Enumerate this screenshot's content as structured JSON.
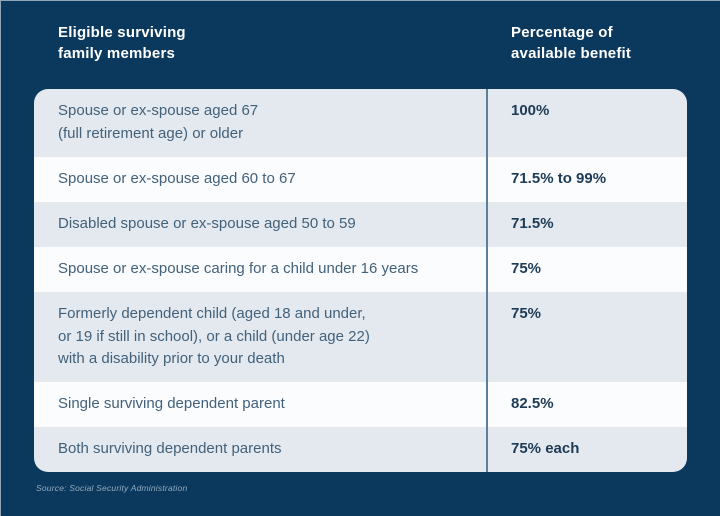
{
  "header": {
    "col1": "Eligible surviving\nfamily members",
    "col2": "Percentage of\navailable benefit"
  },
  "table": {
    "rows": [
      {
        "label": "Spouse or ex-spouse aged 67\n(full retirement age) or older",
        "value": "100%"
      },
      {
        "label": "Spouse or ex-spouse aged 60 to 67",
        "value": "71.5% to 99%"
      },
      {
        "label": "Disabled spouse or ex-spouse aged 50 to 59",
        "value": "71.5%"
      },
      {
        "label": "Spouse or ex-spouse caring for a child under 16 years",
        "value": "75%"
      },
      {
        "label": "Formerly dependent child (aged 18 and under,\nor 19 if still in school), or a child (under age 22)\nwith a disability prior to your death",
        "value": "75%"
      },
      {
        "label": "Single surviving dependent parent",
        "value": "82.5%"
      },
      {
        "label": "Both surviving dependent parents",
        "value": "75% each"
      }
    ]
  },
  "footer": {
    "source": "Source: Social Security Administration"
  },
  "colors": {
    "background_navy": "#0b395d",
    "row_shaded": "#e4e9ef",
    "row_plain": "#fbfcfd",
    "label_text": "#42617b",
    "value_text": "#1d3b56",
    "divider": "#5d7f99",
    "header_text": "#ffffff",
    "source_text": "#93aabc"
  }
}
